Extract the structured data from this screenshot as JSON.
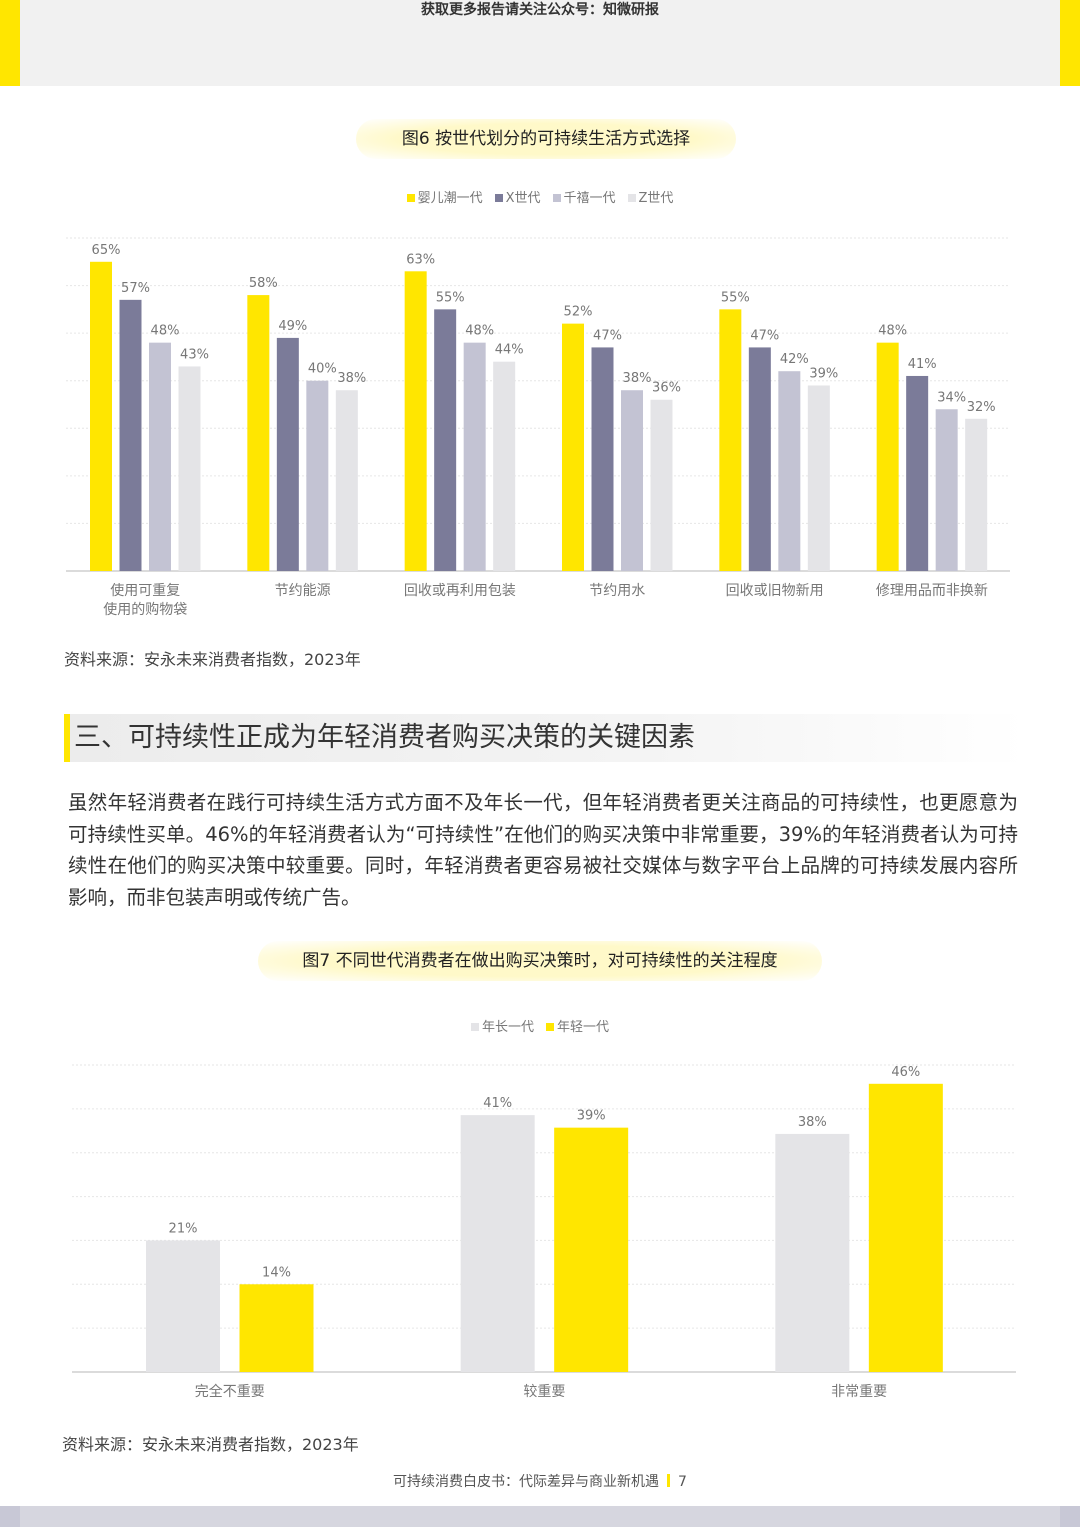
{
  "header": {
    "notice": "获取更多报告请关注公众号：知微研报"
  },
  "figure6": {
    "title": "图6 按世代划分的可持续生活方式选择",
    "source": "资料来源：安永未来消费者指数，2023年"
  },
  "section": {
    "heading": "三、可持续性正成为年轻消费者购买决策的关键因素",
    "paragraph": "虽然年轻消费者在践行可持续生活方式方面不及年长一代，但年轻消费者更关注商品的可持续性，也更愿意为可持续性买单。46%的年轻消费者认为“可持续性”在他们的购买决策中非常重要，39%的年轻消费者认为可持续性在他们的购买决策中较重要。同时，年轻消费者更容易被社交媒体与数字平台上品牌的可持续发展内容所影响，而非包装声明或传统广告。"
  },
  "figure7": {
    "title": "图7 不同世代消费者在做出购买决策时，对可持续性的关注程度",
    "source": "资料来源：安永未来消费者指数，2023年"
  },
  "footer": {
    "text": "可持续消费白皮书：代际差异与商业新机遇",
    "page": "7"
  },
  "chart_data": [
    {
      "type": "bar",
      "title": "图6 按世代划分的可持续生活方式选择",
      "categories": [
        "使用可重复\n使用的购物袋",
        "节约能源",
        "回收或再利用包装",
        "节约用水",
        "回收或旧物新用",
        "修理用品而非换新"
      ],
      "series": [
        {
          "name": "婴儿潮一代",
          "color": "#ffe600",
          "values": [
            65,
            58,
            63,
            52,
            55,
            48
          ]
        },
        {
          "name": "X世代",
          "color": "#7b7b99",
          "values": [
            57,
            49,
            55,
            47,
            47,
            41
          ]
        },
        {
          "name": "千禧一代",
          "color": "#c3c3d3",
          "values": [
            48,
            40,
            48,
            38,
            42,
            34
          ]
        },
        {
          "name": "Z世代",
          "color": "#e4e4e7",
          "values": [
            43,
            38,
            44,
            36,
            39,
            32
          ]
        }
      ],
      "unit": "%",
      "ylim": [
        0,
        70
      ],
      "legend": "top-center",
      "grid": true
    },
    {
      "type": "bar",
      "title": "图7 不同世代消费者在做出购买决策时，对可持续性的关注程度",
      "categories": [
        "完全不重要",
        "较重要",
        "非常重要"
      ],
      "series": [
        {
          "name": "年长一代",
          "color": "#e4e4e7",
          "values": [
            21,
            41,
            38
          ]
        },
        {
          "name": "年轻一代",
          "color": "#ffe600",
          "values": [
            14,
            39,
            46
          ]
        }
      ],
      "unit": "%",
      "ylim": [
        0,
        49
      ],
      "legend": "top-center",
      "grid": true
    }
  ]
}
